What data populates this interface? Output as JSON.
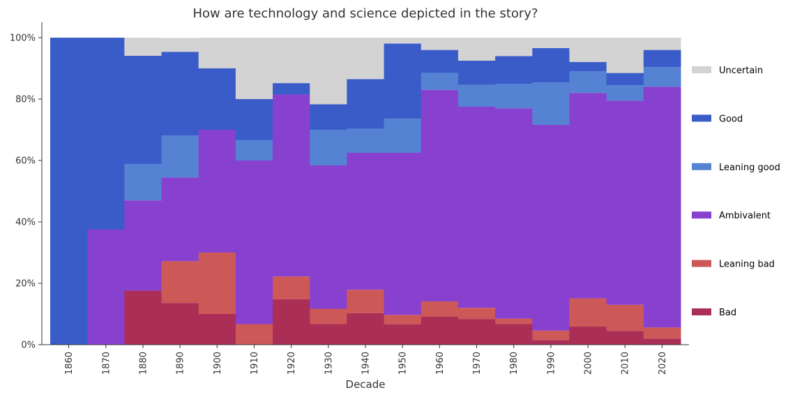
{
  "chart_data": {
    "type": "bar",
    "stacked": true,
    "normalized_percent": true,
    "title": "How are technology and science depicted in the story?",
    "xlabel": "Decade",
    "ylabel": "",
    "ylim": [
      0,
      100
    ],
    "yticks": [
      "0%",
      "20%",
      "40%",
      "60%",
      "80%",
      "100%"
    ],
    "categories": [
      "1860",
      "1870",
      "1880",
      "1890",
      "1900",
      "1910",
      "1920",
      "1930",
      "1940",
      "1950",
      "1960",
      "1970",
      "1980",
      "1990",
      "2000",
      "2010",
      "2020"
    ],
    "legend_position": "right",
    "series": [
      {
        "name": "Bad",
        "color": "#ab2e57",
        "values": [
          0,
          0,
          17.6,
          13.6,
          10,
          0,
          14.8,
          6.7,
          10.3,
          6.6,
          9.1,
          8.3,
          6.7,
          1.5,
          5.9,
          4.5,
          2
        ]
      },
      {
        "name": "Leaning bad",
        "color": "#cd5858",
        "values": [
          0,
          0,
          0,
          13.6,
          20,
          6.7,
          7.4,
          5,
          7.6,
          3.1,
          5,
          3.7,
          1.8,
          3.1,
          9.2,
          8.5,
          3.6
        ]
      },
      {
        "name": "Ambivalent",
        "color": "#8840cf",
        "values": [
          0,
          37.5,
          29.4,
          27.3,
          40,
          53.3,
          59.3,
          46.7,
          44.6,
          52.8,
          68.9,
          65.5,
          68.5,
          67,
          66.9,
          66.5,
          78.4
        ]
      },
      {
        "name": "Leaning good",
        "color": "#5582d3",
        "values": [
          0,
          0,
          11.8,
          13.6,
          0,
          6.7,
          0,
          11.6,
          7.8,
          11.1,
          5.5,
          7.1,
          8,
          13.8,
          7.1,
          5,
          6.4
        ]
      },
      {
        "name": "Good",
        "color": "#3a5cc8",
        "values": [
          100,
          62.5,
          35.3,
          27.3,
          20,
          13.3,
          3.7,
          8.3,
          16.2,
          24.5,
          7.5,
          7.9,
          9,
          11.2,
          3,
          4,
          5.6
        ]
      },
      {
        "name": "Uncertain",
        "color": "#d3d3d3",
        "values": [
          0,
          0,
          5.9,
          4.5,
          10,
          20,
          14.8,
          21.7,
          13.5,
          1.9,
          4,
          7.5,
          6,
          3.4,
          7.9,
          11.5,
          4
        ]
      }
    ]
  }
}
